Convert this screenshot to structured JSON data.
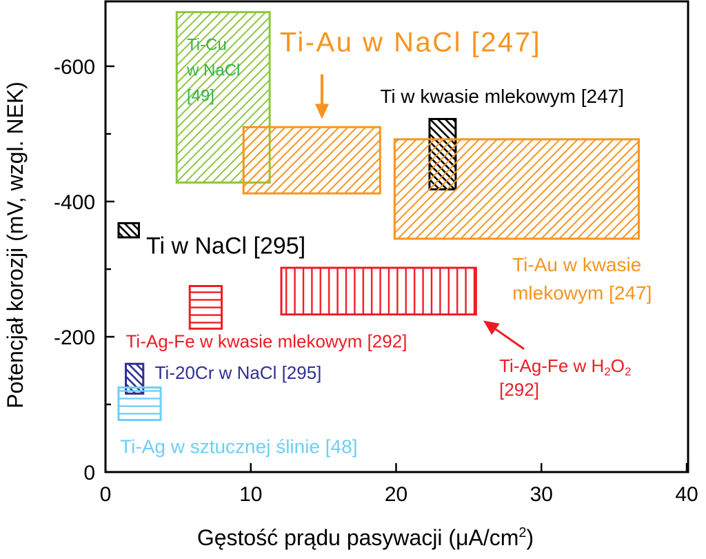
{
  "chart_data": {
    "type": "range-box",
    "xlabel": "Gęstość prądu pasywacji (μA/cm²)",
    "xlabel_main": "Gęstość prądu pasywacji (μA/cm",
    "xlabel_sup": "2",
    "xlabel_close": ")",
    "ylabel": "Potencjał korozji (mV, wzgl. NEK)",
    "xlim": [
      0,
      40
    ],
    "ylim": [
      0,
      700
    ],
    "y_inverted_sign": true,
    "x_ticks": [
      {
        "value": 0,
        "label": "0"
      },
      {
        "value": 10,
        "label": "10"
      },
      {
        "value": 20,
        "label": "20"
      },
      {
        "value": 30,
        "label": "30"
      },
      {
        "value": 40,
        "label": "40"
      }
    ],
    "y_ticks": [
      {
        "value": 0,
        "label": "0"
      },
      {
        "value": 200,
        "label": "-200"
      },
      {
        "value": 400,
        "label": "-400"
      },
      {
        "value": 600,
        "label": "-600"
      }
    ],
    "y_minor_ticks": [
      100,
      300,
      500
    ],
    "series": [
      {
        "key": "ti-cu-nacl",
        "x0": 4.9,
        "x1": 11.3,
        "y0": 428,
        "y1": 680,
        "color": "#8dc63f",
        "hatch": "diag-up"
      },
      {
        "key": "ti-au-nacl",
        "x0": 9.5,
        "x1": 18.9,
        "y0": 412,
        "y1": 510,
        "color": "#f7941d",
        "hatch": "diag-up"
      },
      {
        "key": "ti-mlekowy",
        "x0": 22.3,
        "x1": 24.1,
        "y0": 418,
        "y1": 522,
        "color": "#000000",
        "hatch": "diag-down"
      },
      {
        "key": "ti-au-mlekowy",
        "x0": 19.9,
        "x1": 36.7,
        "y0": 345,
        "y1": 492,
        "color": "#f7941d",
        "hatch": "diag-up"
      },
      {
        "key": "ti-nacl",
        "x0": 0.9,
        "x1": 2.3,
        "y0": 347,
        "y1": 368,
        "color": "#000000",
        "hatch": "diag-down"
      },
      {
        "key": "ti-ag-fe-h2o2",
        "x0": 12.1,
        "x1": 25.5,
        "y0": 233,
        "y1": 302,
        "color": "#ed1c24",
        "hatch": "vertical"
      },
      {
        "key": "ti-ag-fe-mlekowy",
        "x0": 5.8,
        "x1": 8.0,
        "y0": 212,
        "y1": 275,
        "color": "#ed1c24",
        "hatch": "horizontal"
      },
      {
        "key": "ti-20cr-nacl",
        "x0": 1.4,
        "x1": 2.6,
        "y0": 116,
        "y1": 160,
        "color": "#2e3192",
        "hatch": "diag-down"
      },
      {
        "key": "ti-ag-slina",
        "x0": 0.9,
        "x1": 3.8,
        "y0": 77,
        "y1": 125,
        "color": "#6dcff6",
        "hatch": "horizontal"
      }
    ],
    "annotations": [
      {
        "key": "ann-ti-cu",
        "lines": [
          "Ti-Cu",
          "w NaCl",
          "[49]"
        ],
        "x": 5.6,
        "y": 624,
        "line_step": 37,
        "size": 24,
        "color": "#39b54a",
        "anchor": "start"
      },
      {
        "key": "ann-ti-au-nacl",
        "lines": [
          "Ti-Au w NaCl [247]"
        ],
        "x": 12.0,
        "y": 622,
        "line_step": 0,
        "size": 40,
        "color": "#f7941d",
        "anchor": "start",
        "spacing": 2.5
      },
      {
        "key": "ann-ti-mlekowy",
        "lines": [
          "Ti w kwasie mlekowym [247]"
        ],
        "x": 18.9,
        "y": 546,
        "line_step": 0,
        "size": 28,
        "color": "#000000",
        "anchor": "start"
      },
      {
        "key": "ann-ti-nacl",
        "lines": [
          "Ti w NaCl [295]"
        ],
        "x": 2.8,
        "y": 323,
        "line_step": 0,
        "size": 34,
        "color": "#000000",
        "anchor": "start"
      },
      {
        "key": "ann-ti-au-mlekowy",
        "lines": [
          "Ti-Au w kwasie",
          "mlekowym [247]"
        ],
        "x": 28.0,
        "y": 297,
        "line_step": 41,
        "size": 28,
        "color": "#f7941d",
        "anchor": "start"
      },
      {
        "key": "ann-ti-ag-fe-mlekowy",
        "lines": [
          "Ti-Ag-Fe w kwasie mlekowym [292]"
        ],
        "x": 1.4,
        "y": 184,
        "line_step": 0,
        "size": 26,
        "color": "#ed1c24",
        "anchor": "start"
      },
      {
        "key": "ann-ti-20cr",
        "lines": [
          "Ti-20Cr w NaCl [295]"
        ],
        "x": 3.4,
        "y": 138,
        "line_step": 0,
        "size": 26,
        "color": "#2e3192",
        "anchor": "start"
      },
      {
        "key": "ann-ti-ag",
        "lines": [
          "Ti-Ag w sztucznej ślinie [48]"
        ],
        "x": 1.0,
        "y": 28,
        "line_step": 0,
        "size": 28,
        "color": "#6dcff6",
        "anchor": "start"
      },
      {
        "key": "ann-ti-ag-fe-h2o2-ref",
        "lines": [
          "[292]"
        ],
        "x": 27.1,
        "y": 113,
        "line_step": 0,
        "size": 26,
        "color": "#ed1c24",
        "anchor": "start"
      }
    ],
    "h2o2_label": {
      "text": "Ti-Ag-Fe w H",
      "sub1": "2",
      "mid": "O",
      "sub2": "2",
      "x": 27.1,
      "y": 148,
      "size": 26,
      "color": "#ed1c24"
    },
    "arrows": [
      {
        "key": "arrow-ti-au-nacl",
        "from": [
          14.9,
          588
        ],
        "to": [
          14.9,
          522
        ],
        "color": "#f7941d",
        "width": 4
      },
      {
        "key": "arrow-ti-ag-fe-h2o2",
        "from": [
          28.8,
          182
        ],
        "to": [
          26.0,
          224
        ],
        "color": "#ed1c24",
        "width": 3
      }
    ]
  }
}
